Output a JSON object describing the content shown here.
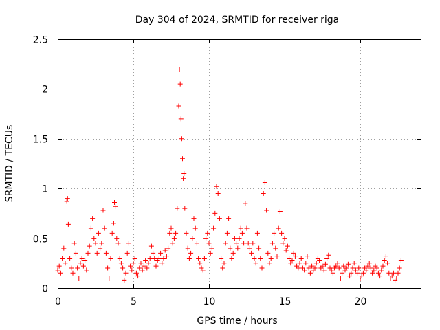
{
  "chart_data": {
    "type": "scatter",
    "title": "Day 304 of 2024, SRMTID for receiver riga",
    "xlabel": "GPS time / hours",
    "ylabel": "SRMTID / TECUs",
    "xlim": [
      0,
      24
    ],
    "ylim": [
      0,
      2.5
    ],
    "xticks": [
      0,
      5,
      10,
      15,
      20
    ],
    "yticks": [
      0,
      0.5,
      1,
      1.5,
      2,
      2.5
    ],
    "xtick_labels": [
      "0",
      "5",
      "10",
      "15",
      "20"
    ],
    "ytick_labels": [
      "0",
      "0.5",
      "1",
      "1.5",
      "2",
      "2.5"
    ],
    "grid": true,
    "marker": "+",
    "color": "#ff0000",
    "series": [
      {
        "name": "SRMTID",
        "x": [
          0.0,
          0.1,
          0.2,
          0.3,
          0.4,
          0.5,
          0.6,
          0.65,
          0.7,
          0.8,
          0.9,
          1.0,
          1.1,
          1.2,
          1.3,
          1.4,
          1.5,
          1.6,
          1.7,
          1.8,
          1.9,
          2.0,
          2.1,
          2.2,
          2.3,
          2.4,
          2.5,
          2.6,
          2.7,
          2.8,
          2.9,
          3.0,
          3.1,
          3.2,
          3.3,
          3.4,
          3.5,
          3.6,
          3.7,
          3.75,
          3.8,
          3.9,
          4.0,
          4.1,
          4.2,
          4.3,
          4.4,
          4.5,
          4.6,
          4.7,
          4.8,
          4.9,
          5.0,
          5.1,
          5.2,
          5.3,
          5.4,
          5.5,
          5.6,
          5.7,
          5.8,
          5.9,
          6.0,
          6.1,
          6.2,
          6.3,
          6.4,
          6.5,
          6.6,
          6.7,
          6.8,
          6.9,
          7.0,
          7.1,
          7.2,
          7.3,
          7.4,
          7.5,
          7.6,
          7.7,
          7.8,
          7.9,
          8.0,
          8.05,
          8.1,
          8.15,
          8.2,
          8.25,
          8.3,
          8.35,
          8.4,
          8.5,
          8.6,
          8.7,
          8.8,
          8.9,
          9.0,
          9.1,
          9.2,
          9.3,
          9.4,
          9.5,
          9.6,
          9.7,
          9.8,
          9.9,
          10.0,
          10.1,
          10.2,
          10.3,
          10.4,
          10.5,
          10.6,
          10.7,
          10.8,
          10.9,
          11.0,
          11.1,
          11.2,
          11.3,
          11.4,
          11.5,
          11.6,
          11.7,
          11.8,
          11.9,
          12.0,
          12.1,
          12.2,
          12.3,
          12.4,
          12.5,
          12.6,
          12.7,
          12.8,
          12.9,
          13.0,
          13.1,
          13.2,
          13.3,
          13.4,
          13.5,
          13.6,
          13.7,
          13.8,
          13.9,
          14.0,
          14.1,
          14.2,
          14.3,
          14.4,
          14.5,
          14.6,
          14.7,
          14.8,
          14.9,
          15.0,
          15.1,
          15.2,
          15.3,
          15.4,
          15.5,
          15.6,
          15.7,
          15.8,
          15.9,
          16.0,
          16.1,
          16.2,
          16.3,
          16.4,
          16.5,
          16.6,
          16.7,
          16.8,
          16.9,
          17.0,
          17.1,
          17.2,
          17.3,
          17.4,
          17.5,
          17.6,
          17.7,
          17.8,
          17.9,
          18.0,
          18.1,
          18.2,
          18.3,
          18.4,
          18.5,
          18.6,
          18.7,
          18.8,
          18.9,
          19.0,
          19.1,
          19.2,
          19.3,
          19.4,
          19.5,
          19.6,
          19.7,
          19.8,
          19.9,
          20.0,
          20.1,
          20.2,
          20.3,
          20.4,
          20.5,
          20.6,
          20.7,
          20.8,
          20.9,
          21.0,
          21.1,
          21.2,
          21.3,
          21.4,
          21.5,
          21.6,
          21.7,
          21.8,
          21.9,
          22.0,
          22.1,
          22.2,
          22.3,
          22.4,
          22.5,
          22.6,
          22.7
        ],
        "y": [
          0.18,
          0.22,
          0.15,
          0.3,
          0.4,
          0.25,
          0.87,
          0.9,
          0.64,
          0.3,
          0.2,
          0.15,
          0.45,
          0.35,
          0.2,
          0.1,
          0.25,
          0.3,
          0.22,
          0.28,
          0.18,
          0.35,
          0.42,
          0.6,
          0.7,
          0.5,
          0.45,
          0.35,
          0.55,
          0.4,
          0.45,
          0.78,
          0.6,
          0.35,
          0.2,
          0.1,
          0.3,
          0.55,
          0.65,
          0.86,
          0.82,
          0.5,
          0.45,
          0.3,
          0.25,
          0.2,
          0.08,
          0.15,
          0.35,
          0.45,
          0.22,
          0.18,
          0.25,
          0.3,
          0.15,
          0.12,
          0.2,
          0.25,
          0.18,
          0.22,
          0.28,
          0.2,
          0.25,
          0.3,
          0.42,
          0.35,
          0.3,
          0.22,
          0.28,
          0.3,
          0.35,
          0.25,
          0.3,
          0.38,
          0.32,
          0.4,
          0.55,
          0.6,
          0.45,
          0.5,
          0.55,
          0.8,
          1.83,
          2.2,
          2.05,
          1.7,
          1.5,
          1.3,
          1.1,
          1.15,
          0.8,
          0.55,
          0.4,
          0.3,
          0.35,
          0.5,
          0.7,
          0.6,
          0.45,
          0.3,
          0.25,
          0.2,
          0.18,
          0.3,
          0.5,
          0.55,
          0.45,
          0.35,
          0.4,
          0.6,
          0.75,
          1.02,
          0.95,
          0.7,
          0.3,
          0.2,
          0.25,
          0.45,
          0.55,
          0.7,
          0.4,
          0.3,
          0.35,
          0.5,
          0.45,
          0.4,
          0.5,
          0.6,
          0.55,
          0.45,
          0.85,
          0.6,
          0.45,
          0.4,
          0.35,
          0.45,
          0.3,
          0.25,
          0.55,
          0.4,
          0.3,
          0.2,
          0.95,
          1.06,
          0.78,
          0.35,
          0.25,
          0.3,
          0.45,
          0.55,
          0.4,
          0.32,
          0.6,
          0.77,
          0.55,
          0.45,
          0.5,
          0.38,
          0.42,
          0.3,
          0.25,
          0.28,
          0.35,
          0.32,
          0.22,
          0.2,
          0.25,
          0.3,
          0.2,
          0.18,
          0.25,
          0.32,
          0.2,
          0.15,
          0.22,
          0.18,
          0.2,
          0.25,
          0.3,
          0.28,
          0.2,
          0.22,
          0.18,
          0.24,
          0.3,
          0.33,
          0.2,
          0.18,
          0.15,
          0.2,
          0.22,
          0.25,
          0.2,
          0.1,
          0.15,
          0.22,
          0.18,
          0.2,
          0.24,
          0.12,
          0.15,
          0.2,
          0.25,
          0.18,
          0.15,
          0.2,
          0.1,
          0.12,
          0.15,
          0.2,
          0.18,
          0.22,
          0.25,
          0.2,
          0.15,
          0.18,
          0.22,
          0.2,
          0.15,
          0.12,
          0.18,
          0.22,
          0.28,
          0.32,
          0.25,
          0.15,
          0.1,
          0.12,
          0.15,
          0.08,
          0.1,
          0.15,
          0.2,
          0.28
        ]
      }
    ]
  }
}
